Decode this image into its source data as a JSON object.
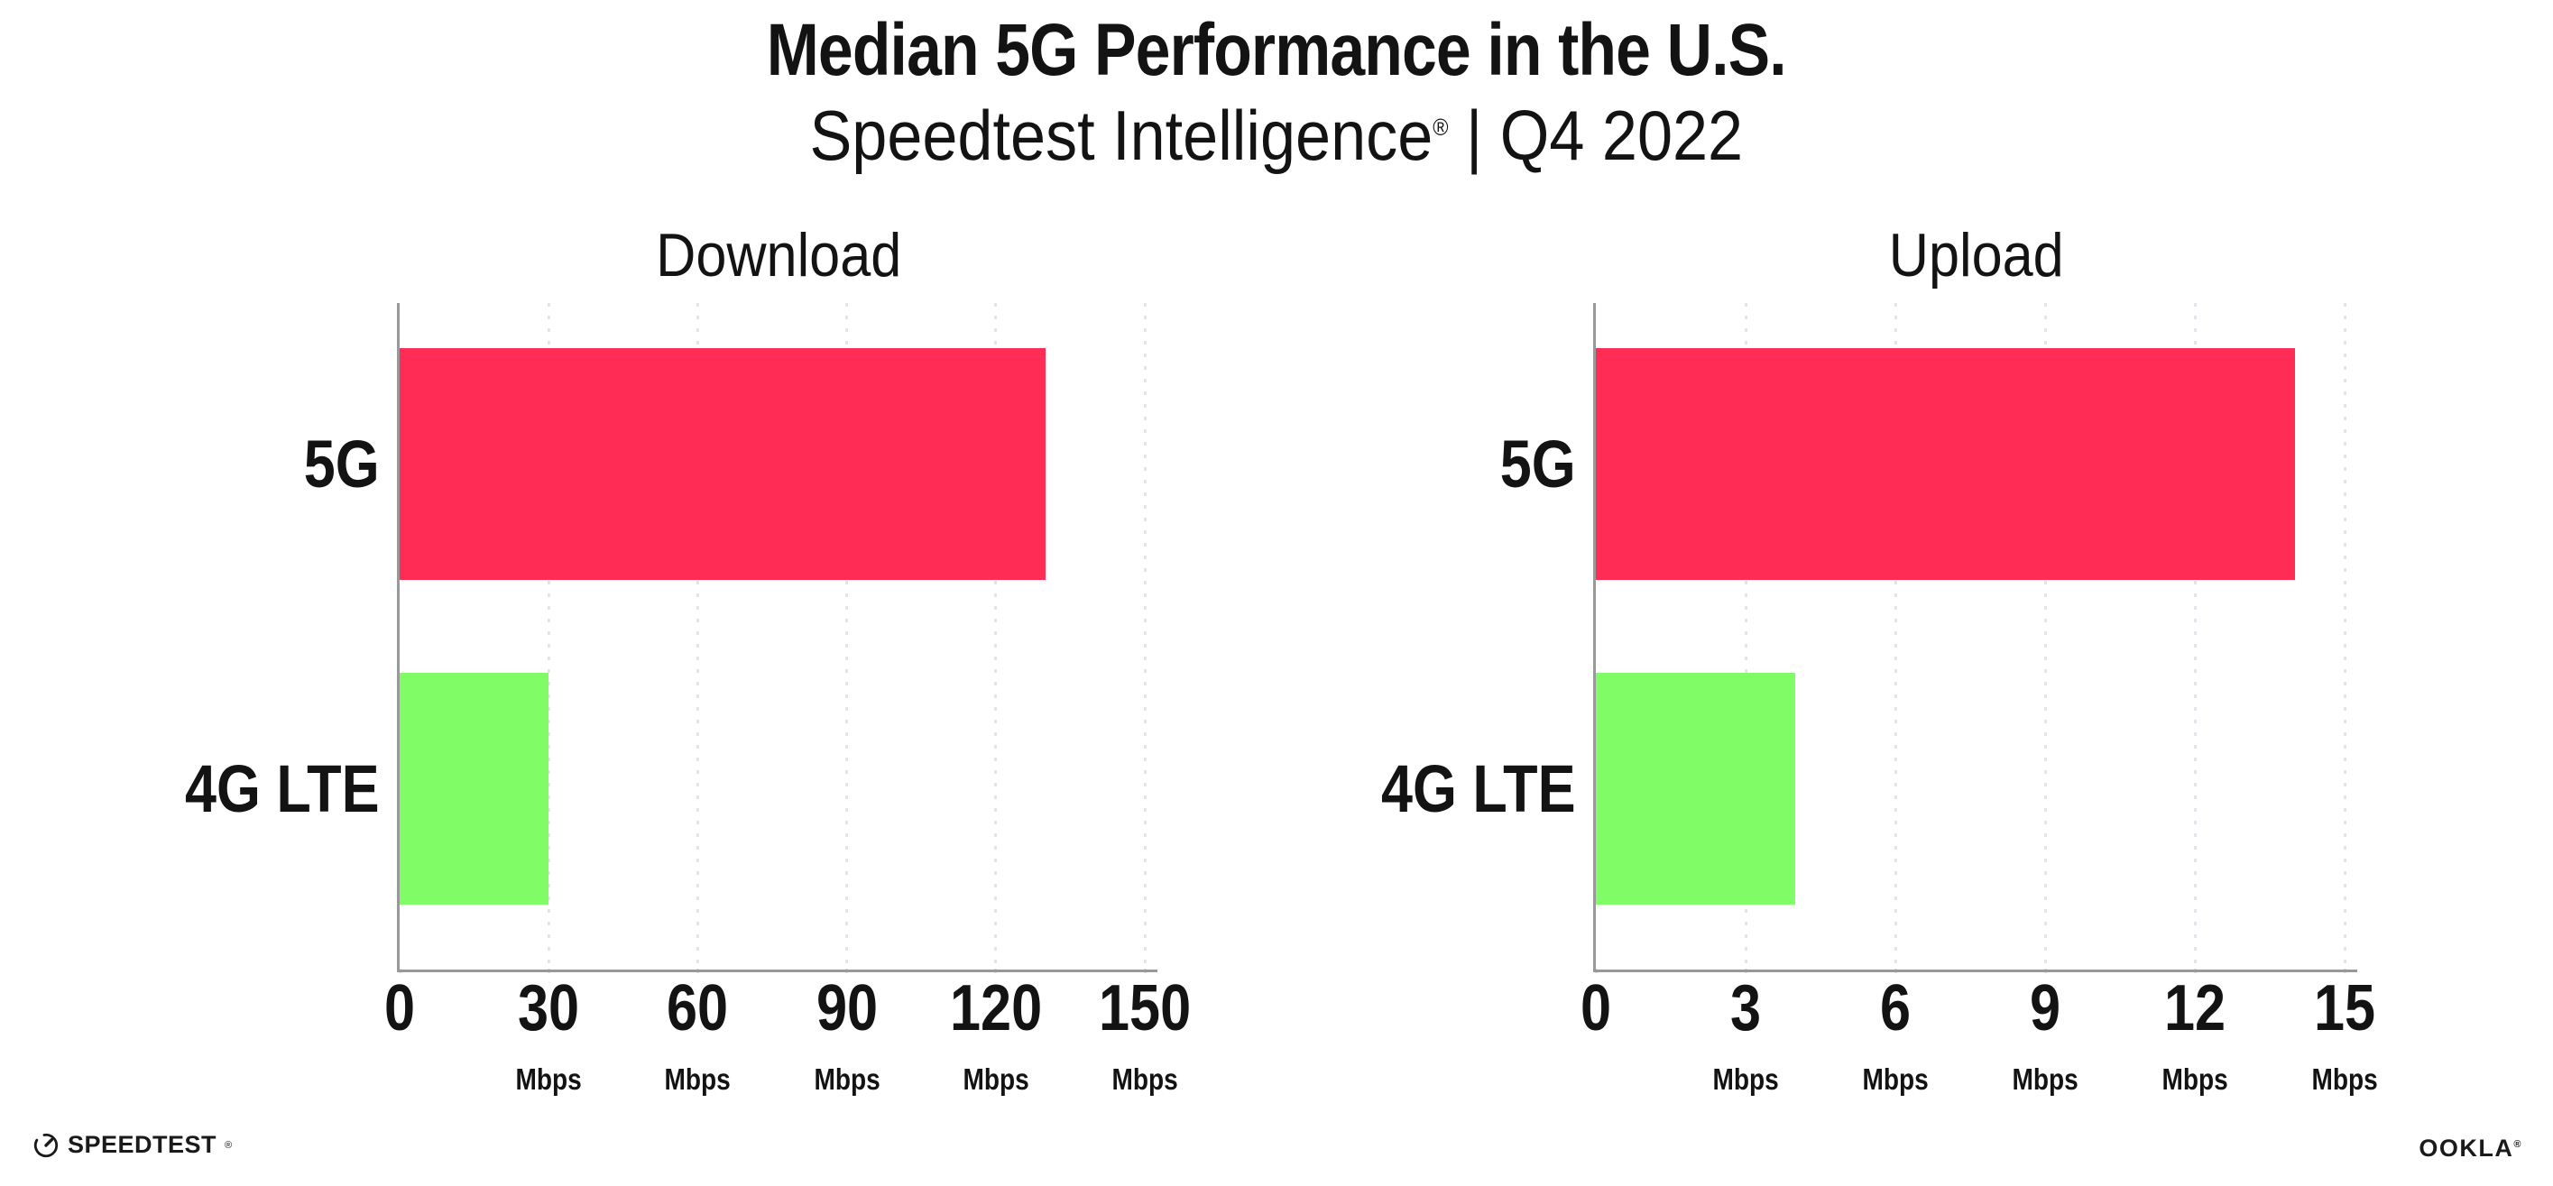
{
  "header": {
    "title": "Median 5G Performance in the U.S.",
    "subtitle_brand": "Speedtest Intelligence",
    "subtitle_reg": "®",
    "subtitle_rest": " | Q4 2022"
  },
  "chart_data": [
    {
      "type": "bar",
      "orientation": "horizontal",
      "title": "Download",
      "categories": [
        "5G",
        "4G LTE"
      ],
      "values": [
        130,
        30
      ],
      "value_unit": "Mbps",
      "xlim": [
        0,
        150
      ],
      "xticks": [
        0,
        30,
        60,
        90,
        120,
        150
      ],
      "xtick_unit": "Mbps",
      "bar_colors": [
        "#FF2D55",
        "#80FC66"
      ],
      "grid": "vertical-dotted",
      "legend": "none"
    },
    {
      "type": "bar",
      "orientation": "horizontal",
      "title": "Upload",
      "categories": [
        "5G",
        "4G LTE"
      ],
      "values": [
        14,
        4
      ],
      "value_unit": "Mbps",
      "xlim": [
        0,
        15
      ],
      "xticks": [
        0,
        3,
        6,
        9,
        12,
        15
      ],
      "xtick_unit": "Mbps",
      "bar_colors": [
        "#FF2D55",
        "#80FC66"
      ],
      "grid": "vertical-dotted",
      "legend": "none"
    }
  ],
  "colors": {
    "bar_5g": "#FF2D55",
    "bar_4g_lte": "#80FC66",
    "axis": "#999999",
    "gridline": "#E4E4EE",
    "tick_dot": "#D9D9E6",
    "text": "#131313"
  },
  "footer": {
    "speedtest_icon": "gauge-icon",
    "speedtest_label": "SPEEDTEST",
    "speedtest_reg": "®",
    "ookla_label": "OOKLA",
    "ookla_reg": "®"
  }
}
